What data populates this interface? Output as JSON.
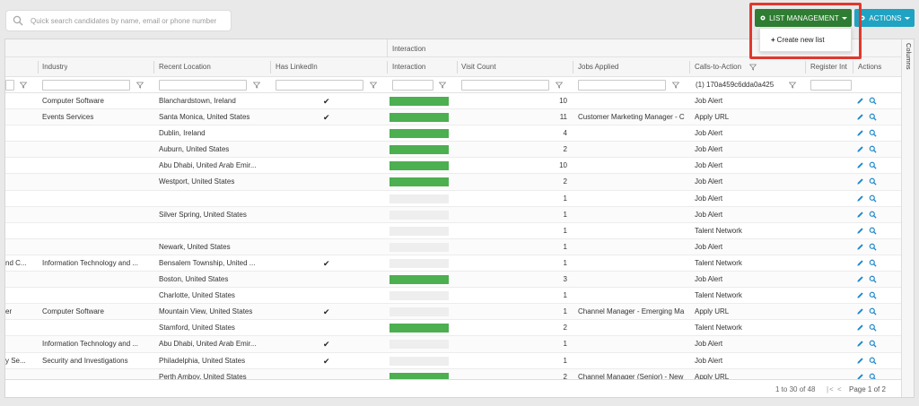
{
  "search": {
    "placeholder": "Quick search candidates by name, email or phone number"
  },
  "toolbar": {
    "list_management_label": "LIST MANAGEMENT",
    "actions_label": "ACTIONS"
  },
  "dropdown": {
    "create_new_list_label": "Create new list"
  },
  "grid": {
    "group_header": "Interaction",
    "columns": [
      "Industry",
      "Recent Location",
      "Has LinkedIn",
      "Interaction",
      "Visit Count",
      "Jobs Applied",
      "Calls-to-Action",
      "Register Int",
      "Actions"
    ],
    "cta_filter_value": "(1) 170a459c6dda0a425",
    "side_label": "Columns",
    "rows": [
      {
        "lead": "",
        "industry": "Computer Software",
        "location": "Blanchardstown, Ireland",
        "linkedin": true,
        "interaction": 1.0,
        "visits": "10",
        "jobs": "",
        "cta": "Job Alert"
      },
      {
        "lead": "",
        "industry": "Events Services",
        "location": "Santa Monica, United States",
        "linkedin": true,
        "interaction": 1.0,
        "visits": "11",
        "jobs": "Customer Marketing Manager - C",
        "cta": "Apply URL"
      },
      {
        "lead": "",
        "industry": "",
        "location": "Dublin, Ireland",
        "linkedin": false,
        "interaction": 1.0,
        "visits": "4",
        "jobs": "",
        "cta": "Job Alert"
      },
      {
        "lead": "",
        "industry": "",
        "location": "Auburn, United States",
        "linkedin": false,
        "interaction": 1.0,
        "visits": "2",
        "jobs": "",
        "cta": "Job Alert"
      },
      {
        "lead": "",
        "industry": "",
        "location": "Abu Dhabi, United Arab Emir...",
        "linkedin": false,
        "interaction": 1.0,
        "visits": "10",
        "jobs": "",
        "cta": "Job Alert"
      },
      {
        "lead": "",
        "industry": "",
        "location": "Westport, United States",
        "linkedin": false,
        "interaction": 1.0,
        "visits": "2",
        "jobs": "",
        "cta": "Job Alert"
      },
      {
        "lead": "",
        "industry": "",
        "location": "",
        "linkedin": false,
        "interaction": 0.0,
        "visits": "1",
        "jobs": "",
        "cta": "Job Alert"
      },
      {
        "lead": "",
        "industry": "",
        "location": "Silver Spring, United States",
        "linkedin": false,
        "interaction": 0.0,
        "visits": "1",
        "jobs": "",
        "cta": "Job Alert"
      },
      {
        "lead": "",
        "industry": "",
        "location": "",
        "linkedin": false,
        "interaction": 0.0,
        "visits": "1",
        "jobs": "",
        "cta": "Talent Network"
      },
      {
        "lead": "",
        "industry": "",
        "location": "Newark, United States",
        "linkedin": false,
        "interaction": 0.0,
        "visits": "1",
        "jobs": "",
        "cta": "Job Alert"
      },
      {
        "lead": "nd C...",
        "industry": "Information Technology and ...",
        "location": "Bensalem Township, United ...",
        "linkedin": true,
        "interaction": 0.0,
        "visits": "1",
        "jobs": "",
        "cta": "Talent Network"
      },
      {
        "lead": "",
        "industry": "",
        "location": "Boston, United States",
        "linkedin": false,
        "interaction": 1.0,
        "visits": "3",
        "jobs": "",
        "cta": "Job Alert"
      },
      {
        "lead": "",
        "industry": "",
        "location": "Charlotte, United States",
        "linkedin": false,
        "interaction": 0.0,
        "visits": "1",
        "jobs": "",
        "cta": "Talent Network"
      },
      {
        "lead": "er",
        "industry": "Computer Software",
        "location": "Mountain View, United States",
        "linkedin": true,
        "interaction": 0.0,
        "visits": "1",
        "jobs": "Channel Manager - Emerging Ma",
        "cta": "Apply URL"
      },
      {
        "lead": "",
        "industry": "",
        "location": "Stamford, United States",
        "linkedin": false,
        "interaction": 1.0,
        "visits": "2",
        "jobs": "",
        "cta": "Talent Network"
      },
      {
        "lead": "",
        "industry": "Information Technology and ...",
        "location": "Abu Dhabi, United Arab Emir...",
        "linkedin": true,
        "interaction": 0.0,
        "visits": "1",
        "jobs": "",
        "cta": "Job Alert"
      },
      {
        "lead": "y Se...",
        "industry": "Security and Investigations",
        "location": "Philadelphia, United States",
        "linkedin": true,
        "interaction": 0.0,
        "visits": "1",
        "jobs": "",
        "cta": "Job Alert"
      },
      {
        "lead": "",
        "industry": "",
        "location": "Perth Amboy, United States",
        "linkedin": false,
        "interaction": 1.0,
        "visits": "2",
        "jobs": "Channel Manager (Senior) - New",
        "cta": "Apply URL"
      }
    ]
  },
  "pagination": {
    "range": "1 to 30 of 48",
    "page": "Page 1 of 2"
  },
  "colors": {
    "list_button": "#2e7d32",
    "actions_button": "#20a3c2",
    "interaction_bar": "#4caf50",
    "highlight": "#e0382c",
    "action_icon": "#1e88c9"
  },
  "icons": [
    "search-icon",
    "gear-icon",
    "caret-down-icon",
    "plus-icon",
    "filter-icon",
    "checkmark-icon",
    "edit-pencil-icon",
    "view-magnifier-icon",
    "page-first-icon",
    "page-prev-icon"
  ]
}
